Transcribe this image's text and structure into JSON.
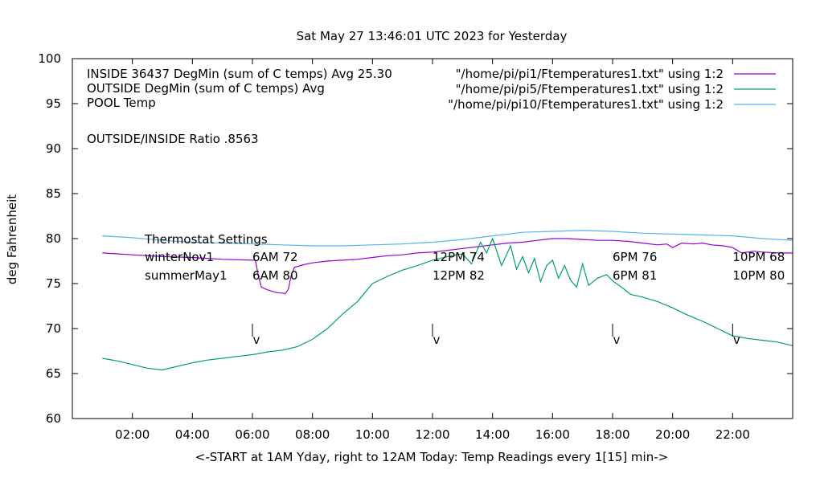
{
  "chart_data": {
    "type": "line",
    "title": "Sat May 27 13:46:01 UTC 2023 for Yesterday",
    "xlabel": "<-START at 1AM Yday, right to 12AM Today:  Temp Readings every 1[15] min->",
    "ylabel": "deg Fahrenheit",
    "xlim": [
      0,
      24
    ],
    "ylim": [
      60,
      100
    ],
    "grid": false,
    "legend_position": "top-right",
    "x_ticks": [
      {
        "v": 2,
        "label": "02:00"
      },
      {
        "v": 4,
        "label": "04:00"
      },
      {
        "v": 6,
        "label": "06:00"
      },
      {
        "v": 8,
        "label": "08:00"
      },
      {
        "v": 10,
        "label": "10:00"
      },
      {
        "v": 12,
        "label": "12:00"
      },
      {
        "v": 14,
        "label": "14:00"
      },
      {
        "v": 16,
        "label": "16:00"
      },
      {
        "v": 18,
        "label": "18:00"
      },
      {
        "v": 20,
        "label": "20:00"
      },
      {
        "v": 22,
        "label": "22:00"
      }
    ],
    "y_ticks": [
      60,
      65,
      70,
      75,
      80,
      85,
      90,
      95,
      100
    ],
    "header_lines": [
      "INSIDE 36437 DegMin (sum of C temps) Avg 25.30",
      "OUTSIDE  DegMin (sum of C temps) Avg",
      "POOL Temp",
      "OUTSIDE/INSIDE Ratio .8563"
    ],
    "series": [
      {
        "name": "\"/home/pi/pi1/Ftemperatures1.txt\" using 1:2",
        "color": "#9400d3",
        "points": [
          [
            1.0,
            78.4
          ],
          [
            1.5,
            78.3
          ],
          [
            2.0,
            78.2
          ],
          [
            3.0,
            78.0
          ],
          [
            4.0,
            77.9
          ],
          [
            5.0,
            77.7
          ],
          [
            6.0,
            77.6
          ],
          [
            6.1,
            77.6
          ],
          [
            6.2,
            75.8
          ],
          [
            6.3,
            74.6
          ],
          [
            6.5,
            74.3
          ],
          [
            6.8,
            74.0
          ],
          [
            7.1,
            73.9
          ],
          [
            7.2,
            74.4
          ],
          [
            7.3,
            76.0
          ],
          [
            7.4,
            76.8
          ],
          [
            7.7,
            77.1
          ],
          [
            8.0,
            77.3
          ],
          [
            8.5,
            77.5
          ],
          [
            9.0,
            77.6
          ],
          [
            9.5,
            77.7
          ],
          [
            10.0,
            77.9
          ],
          [
            10.5,
            78.1
          ],
          [
            11.0,
            78.2
          ],
          [
            11.5,
            78.4
          ],
          [
            12.0,
            78.5
          ],
          [
            12.5,
            78.7
          ],
          [
            13.0,
            78.9
          ],
          [
            13.5,
            79.1
          ],
          [
            14.0,
            79.3
          ],
          [
            14.5,
            79.5
          ],
          [
            15.0,
            79.6
          ],
          [
            15.5,
            79.8
          ],
          [
            16.0,
            80.0
          ],
          [
            16.5,
            80.0
          ],
          [
            17.0,
            79.9
          ],
          [
            17.5,
            79.8
          ],
          [
            18.0,
            79.8
          ],
          [
            18.5,
            79.7
          ],
          [
            19.0,
            79.5
          ],
          [
            19.5,
            79.3
          ],
          [
            19.8,
            79.4
          ],
          [
            20.0,
            79.0
          ],
          [
            20.3,
            79.5
          ],
          [
            20.7,
            79.4
          ],
          [
            21.0,
            79.5
          ],
          [
            21.3,
            79.3
          ],
          [
            21.7,
            79.2
          ],
          [
            22.0,
            79.0
          ],
          [
            22.3,
            78.4
          ],
          [
            22.7,
            78.6
          ],
          [
            23.0,
            78.5
          ],
          [
            23.5,
            78.4
          ],
          [
            24.0,
            78.4
          ]
        ]
      },
      {
        "name": "\"/home/pi/pi5/Ftemperatures1.txt\" using 1:2",
        "color": "#009e73",
        "points": [
          [
            1.0,
            66.7
          ],
          [
            1.5,
            66.4
          ],
          [
            2.0,
            66.0
          ],
          [
            2.5,
            65.6
          ],
          [
            3.0,
            65.4
          ],
          [
            3.5,
            65.8
          ],
          [
            4.0,
            66.2
          ],
          [
            4.5,
            66.5
          ],
          [
            5.0,
            66.7
          ],
          [
            5.5,
            66.9
          ],
          [
            6.0,
            67.1
          ],
          [
            6.5,
            67.4
          ],
          [
            7.0,
            67.6
          ],
          [
            7.5,
            68.0
          ],
          [
            8.0,
            68.8
          ],
          [
            8.5,
            70.0
          ],
          [
            9.0,
            71.6
          ],
          [
            9.5,
            73.0
          ],
          [
            10.0,
            75.0
          ],
          [
            10.5,
            75.8
          ],
          [
            11.0,
            76.5
          ],
          [
            11.5,
            77.0
          ],
          [
            12.0,
            77.6
          ],
          [
            12.5,
            78.0
          ],
          [
            13.0,
            78.3
          ],
          [
            13.3,
            77.2
          ],
          [
            13.6,
            79.6
          ],
          [
            13.8,
            78.4
          ],
          [
            14.0,
            80.0
          ],
          [
            14.3,
            77.0
          ],
          [
            14.6,
            79.2
          ],
          [
            14.8,
            76.6
          ],
          [
            15.0,
            78.0
          ],
          [
            15.2,
            76.2
          ],
          [
            15.4,
            77.8
          ],
          [
            15.6,
            75.2
          ],
          [
            15.8,
            77.0
          ],
          [
            16.0,
            77.6
          ],
          [
            16.2,
            75.6
          ],
          [
            16.4,
            77.0
          ],
          [
            16.6,
            75.4
          ],
          [
            16.8,
            74.6
          ],
          [
            17.0,
            77.2
          ],
          [
            17.2,
            74.8
          ],
          [
            17.5,
            75.6
          ],
          [
            17.8,
            76.0
          ],
          [
            18.0,
            75.3
          ],
          [
            18.3,
            74.6
          ],
          [
            18.6,
            73.8
          ],
          [
            19.0,
            73.5
          ],
          [
            19.5,
            73.0
          ],
          [
            20.0,
            72.3
          ],
          [
            20.5,
            71.5
          ],
          [
            21.0,
            70.8
          ],
          [
            21.5,
            70.0
          ],
          [
            22.0,
            69.2
          ],
          [
            22.5,
            68.9
          ],
          [
            23.0,
            68.7
          ],
          [
            23.5,
            68.5
          ],
          [
            24.0,
            68.1
          ]
        ]
      },
      {
        "name": "\"/home/pi/pi10/Ftemperatures1.txt\" using 1:2",
        "color": "#56b4e9",
        "points": [
          [
            1.0,
            80.3
          ],
          [
            2.0,
            80.1
          ],
          [
            3.0,
            79.8
          ],
          [
            4.0,
            79.6
          ],
          [
            5.0,
            79.5
          ],
          [
            6.0,
            79.4
          ],
          [
            7.0,
            79.3
          ],
          [
            8.0,
            79.2
          ],
          [
            9.0,
            79.2
          ],
          [
            10.0,
            79.3
          ],
          [
            11.0,
            79.4
          ],
          [
            12.0,
            79.6
          ],
          [
            13.0,
            79.9
          ],
          [
            14.0,
            80.3
          ],
          [
            15.0,
            80.7
          ],
          [
            16.0,
            80.8
          ],
          [
            17.0,
            80.9
          ],
          [
            18.0,
            80.8
          ],
          [
            19.0,
            80.6
          ],
          [
            20.0,
            80.5
          ],
          [
            21.0,
            80.4
          ],
          [
            22.0,
            80.3
          ],
          [
            23.0,
            80.0
          ],
          [
            24.0,
            79.8
          ]
        ]
      }
    ],
    "thermostat": {
      "title": "Thermostat Settings",
      "rows": [
        {
          "label": "winterNov1",
          "settings": [
            "6AM 72",
            "12PM 74",
            "6PM 76",
            "10PM 68"
          ]
        },
        {
          "label": "summerMay1",
          "settings": [
            "6AM 80",
            "12PM 82",
            "6PM 81",
            "10PM 80"
          ]
        }
      ],
      "setting_hours": [
        6,
        12,
        18,
        22
      ],
      "marker_label": "v"
    }
  }
}
